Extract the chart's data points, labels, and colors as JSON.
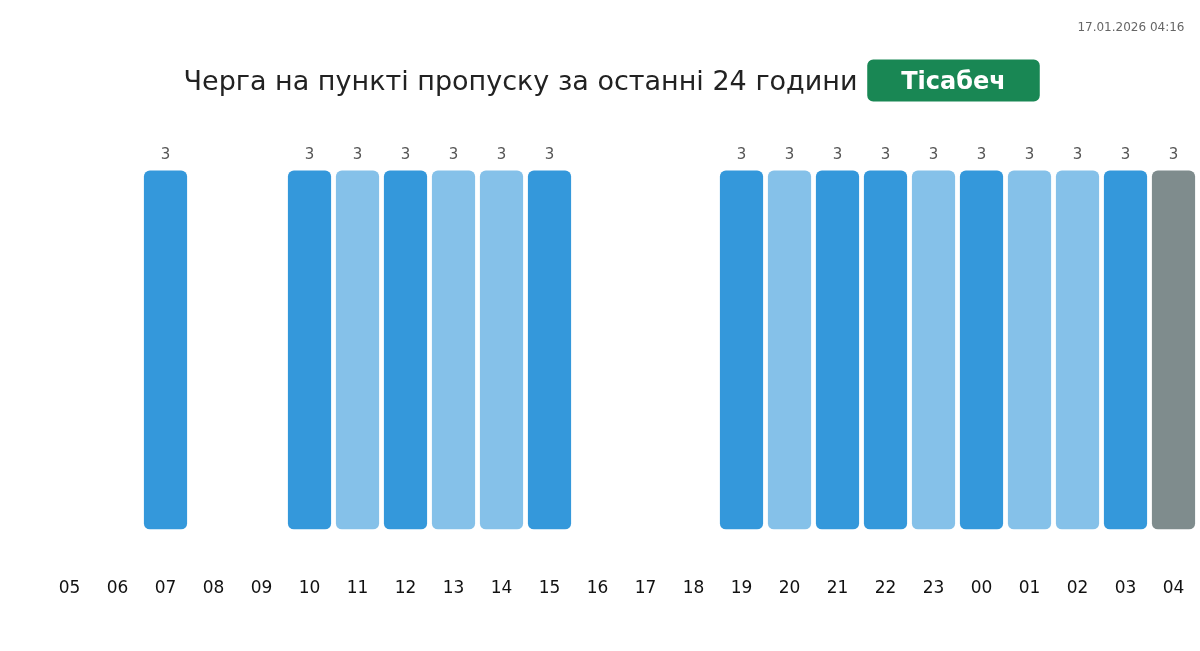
{
  "chart_data": {
    "type": "bar",
    "title": "Черга на пункті пропуску за останні 24 години",
    "subtitle": "Тісабеч",
    "categories": [
      "05",
      "06",
      "07",
      "08",
      "09",
      "10",
      "11",
      "12",
      "13",
      "14",
      "15",
      "16",
      "17",
      "18",
      "19",
      "20",
      "21",
      "22",
      "23",
      "00",
      "01",
      "02",
      "03",
      "04"
    ],
    "values": [
      null,
      null,
      3,
      null,
      null,
      3,
      3,
      3,
      3,
      3,
      3,
      null,
      null,
      null,
      3,
      3,
      3,
      3,
      3,
      3,
      3,
      3,
      3,
      3
    ],
    "colors": [
      null,
      null,
      "#3498db",
      null,
      null,
      "#3498db",
      "#85c1e9",
      "#3498db",
      "#85c1e9",
      "#85c1e9",
      "#3498db",
      null,
      null,
      null,
      "#3498db",
      "#85c1e9",
      "#3498db",
      "#3498db",
      "#85c1e9",
      "#3498db",
      "#85c1e9",
      "#85c1e9",
      "#3498db",
      "#7f8c8d"
    ],
    "data_labels": true,
    "annotations": [
      "17.01.2026 04:16"
    ]
  }
}
